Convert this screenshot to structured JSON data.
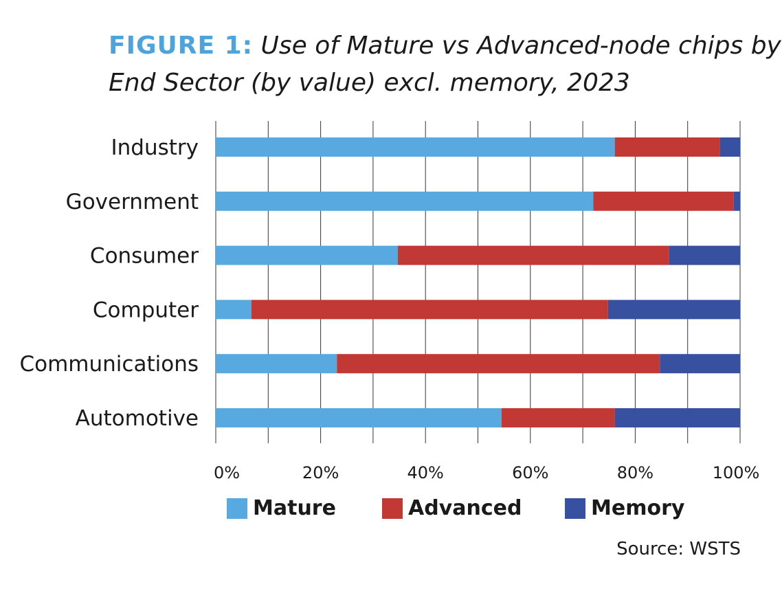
{
  "title": {
    "prefix": "FIGURE 1:",
    "text": "Use of Mature vs Advanced-node chips by End Sector (by value) excl. memory, 2023"
  },
  "source": "Source: WSTS",
  "chart_data": {
    "type": "bar",
    "orientation": "horizontal",
    "stacked": true,
    "categories": [
      "Industry",
      "Government",
      "Consumer",
      "Computer",
      "Communications",
      "Automotive"
    ],
    "series": [
      {
        "name": "Mature",
        "color": "#57a9df",
        "values": [
          76.1,
          72.0,
          34.7,
          6.8,
          23.1,
          54.5
        ]
      },
      {
        "name": "Advanced",
        "color": "#c13835",
        "values": [
          20.0,
          26.8,
          51.7,
          68.0,
          61.6,
          21.6
        ]
      },
      {
        "name": "Memory",
        "color": "#3751a0",
        "values": [
          3.9,
          1.2,
          13.6,
          25.2,
          15.3,
          23.9
        ]
      }
    ],
    "xlim": [
      0,
      100
    ],
    "xticks": [
      "0%",
      "20%",
      "40%",
      "60%",
      "80%",
      "100%"
    ],
    "grid": true,
    "grid_step": 10,
    "legend": "bottom"
  }
}
